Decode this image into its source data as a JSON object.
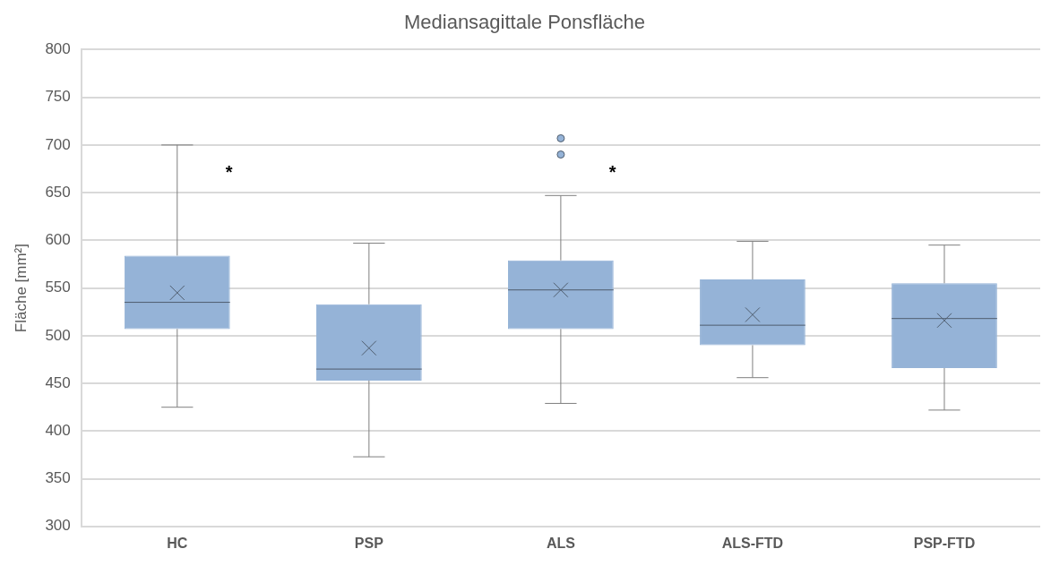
{
  "chart_data": {
    "type": "box",
    "title": "Mediansagittale Ponsfläche",
    "ylabel": "Fläche [mm²]",
    "categories": [
      "HC",
      "PSP",
      "ALS",
      "ALS-FTD",
      "PSP-FTD"
    ],
    "color": "#95b3d7",
    "boxes": [
      {
        "low": 425,
        "q1": 507,
        "median": 535,
        "q3": 584,
        "high": 700,
        "mean": 545
      },
      {
        "low": 373,
        "q1": 453,
        "median": 465,
        "q3": 533,
        "high": 597,
        "mean": 487
      },
      {
        "low": 429,
        "q1": 507,
        "median": 548,
        "q3": 579,
        "high": 647,
        "mean": 548,
        "outliers": [
          707,
          690
        ]
      },
      {
        "low": 456,
        "q1": 490,
        "median": 511,
        "q3": 559,
        "high": 599,
        "mean": 522
      },
      {
        "low": 422,
        "q1": 466,
        "median": 518,
        "q3": 555,
        "high": 595,
        "mean": 516
      }
    ],
    "ylim": [
      300,
      800
    ],
    "yticks": [
      300,
      350,
      400,
      450,
      500,
      550,
      600,
      650,
      700,
      750,
      800
    ],
    "grid": "y",
    "legend": false,
    "annotations": [
      "*",
      "*"
    ]
  }
}
